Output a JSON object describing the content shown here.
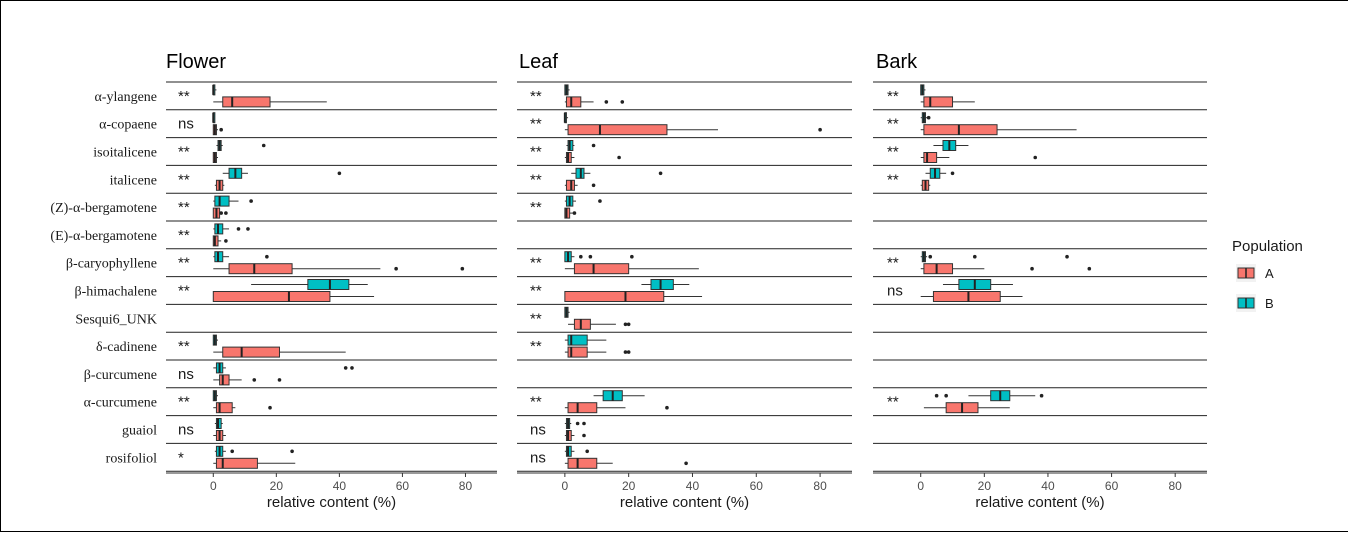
{
  "chart_data": {
    "type": "boxplot",
    "xlabel": "relative content (%)",
    "xlim": [
      -15,
      90
    ],
    "xticks": [
      0,
      20,
      40,
      60,
      80
    ],
    "colors": {
      "A": "#f8766d",
      "B": "#00bfc4"
    },
    "legend": {
      "title": "Population",
      "entries": [
        "A",
        "B"
      ],
      "placement": "right"
    },
    "categories": [
      "α-ylangene",
      "α-copaene",
      "isoitalicene",
      "italicene",
      "(Z)-α-bergamotene",
      "(E)-α-bergamotene",
      "β-caryophyllene",
      "β-himachalene",
      "Sesqui6_UNK",
      "δ-cadinene",
      "β-curcumene",
      "α-curcumene",
      "guaiol",
      "rosifoliol"
    ],
    "panels": [
      {
        "title": "Flower",
        "significance": [
          "**",
          "ns",
          "**",
          "**",
          "**",
          "**",
          "**",
          "**",
          "",
          "**",
          "ns",
          "**",
          "ns",
          "*"
        ],
        "rows": [
          {
            "A": {
              "q1": 3,
              "med": 6,
              "q3": 18,
              "lo": 0,
              "hi": 36,
              "out": []
            },
            "B": {
              "q1": 0,
              "med": 0,
              "q3": 0.5,
              "lo": 0,
              "hi": 1,
              "out": []
            }
          },
          {
            "A": {
              "q1": 0,
              "med": 0.5,
              "q3": 1,
              "lo": 0,
              "hi": 1.5,
              "out": [
                2.5
              ]
            },
            "B": {
              "q1": 0,
              "med": 0,
              "q3": 0.5,
              "lo": 0,
              "hi": 0.5,
              "out": []
            }
          },
          {
            "A": {
              "q1": 0,
              "med": 0.5,
              "q3": 1,
              "lo": 0,
              "hi": 1.5,
              "out": []
            },
            "B": {
              "q1": 1.5,
              "med": 2,
              "q3": 2.5,
              "lo": 1,
              "hi": 3,
              "out": [
                16
              ]
            }
          },
          {
            "A": {
              "q1": 1,
              "med": 2,
              "q3": 3,
              "lo": 0.5,
              "hi": 3.5,
              "out": []
            },
            "B": {
              "q1": 5,
              "med": 7,
              "q3": 9,
              "lo": 3,
              "hi": 11,
              "out": [
                40
              ]
            }
          },
          {
            "A": {
              "q1": 0,
              "med": 1,
              "q3": 2,
              "lo": 0,
              "hi": 3,
              "out": [
                2.5,
                4
              ]
            },
            "B": {
              "q1": 0.5,
              "med": 2,
              "q3": 5,
              "lo": 0,
              "hi": 8,
              "out": [
                12
              ]
            }
          },
          {
            "A": {
              "q1": 0,
              "med": 0.5,
              "q3": 1.5,
              "lo": 0,
              "hi": 2.5,
              "out": [
                4
              ]
            },
            "B": {
              "q1": 0.5,
              "med": 1.5,
              "q3": 3,
              "lo": 0,
              "hi": 5,
              "out": [
                8,
                11
              ]
            }
          },
          {
            "A": {
              "q1": 5,
              "med": 13,
              "q3": 25,
              "lo": 0,
              "hi": 53,
              "out": [
                58,
                79
              ]
            },
            "B": {
              "q1": 0.5,
              "med": 1.5,
              "q3": 3,
              "lo": 0,
              "hi": 5,
              "out": [
                17
              ]
            }
          },
          {
            "A": {
              "q1": 0,
              "med": 24,
              "q3": 37,
              "lo": 0,
              "hi": 51,
              "out": []
            },
            "B": {
              "q1": 30,
              "med": 37,
              "q3": 43,
              "lo": 12,
              "hi": 49,
              "out": []
            }
          },
          {
            "A": null,
            "B": null
          },
          {
            "A": {
              "q1": 3,
              "med": 9,
              "q3": 21,
              "lo": 0,
              "hi": 42,
              "out": []
            },
            "B": {
              "q1": 0,
              "med": 0.5,
              "q3": 1,
              "lo": 0,
              "hi": 1.5,
              "out": []
            }
          },
          {
            "A": {
              "q1": 2,
              "med": 3,
              "q3": 5,
              "lo": 0,
              "hi": 9,
              "out": [
                13,
                21
              ]
            },
            "B": {
              "q1": 1,
              "med": 2,
              "q3": 3,
              "lo": 0,
              "hi": 4,
              "out": [
                42,
                44
              ]
            }
          },
          {
            "A": {
              "q1": 1,
              "med": 2,
              "q3": 6,
              "lo": 0,
              "hi": 7,
              "out": [
                18
              ]
            },
            "B": {
              "q1": 0,
              "med": 0.5,
              "q3": 1,
              "lo": 0,
              "hi": 1.5,
              "out": []
            }
          },
          {
            "A": {
              "q1": 1,
              "med": 2,
              "q3": 3,
              "lo": 0,
              "hi": 4,
              "out": []
            },
            "B": {
              "q1": 1,
              "med": 1.5,
              "q3": 2.5,
              "lo": 0.5,
              "hi": 3,
              "out": []
            }
          },
          {
            "A": {
              "q1": 1,
              "med": 3,
              "q3": 14,
              "lo": 0,
              "hi": 26,
              "out": []
            },
            "B": {
              "q1": 1,
              "med": 2,
              "q3": 3,
              "lo": 0.5,
              "hi": 4,
              "out": [
                6,
                25
              ]
            }
          }
        ]
      },
      {
        "title": "Leaf",
        "significance": [
          "**",
          "**",
          "**",
          "**",
          "**",
          "",
          "**",
          "**",
          "**",
          "**",
          "",
          "**",
          "ns",
          "ns"
        ],
        "rows": [
          {
            "A": {
              "q1": 0.5,
              "med": 2,
              "q3": 5,
              "lo": 0,
              "hi": 9,
              "out": [
                13,
                18
              ]
            },
            "B": {
              "q1": 0,
              "med": 0.5,
              "q3": 1,
              "lo": 0,
              "hi": 1.5,
              "out": []
            }
          },
          {
            "A": {
              "q1": 1,
              "med": 11,
              "q3": 32,
              "lo": 0,
              "hi": 48,
              "out": [
                80
              ]
            },
            "B": {
              "q1": 0,
              "med": 0,
              "q3": 0.5,
              "lo": 0,
              "hi": 1,
              "out": []
            }
          },
          {
            "A": {
              "q1": 0.5,
              "med": 1,
              "q3": 2,
              "lo": 0,
              "hi": 3,
              "out": [
                17
              ]
            },
            "B": {
              "q1": 1,
              "med": 1.5,
              "q3": 2.5,
              "lo": 0.5,
              "hi": 3,
              "out": [
                9
              ]
            }
          },
          {
            "A": {
              "q1": 0.5,
              "med": 2,
              "q3": 3,
              "lo": 0,
              "hi": 4,
              "out": [
                9
              ]
            },
            "B": {
              "q1": 3.5,
              "med": 5,
              "q3": 6,
              "lo": 2,
              "hi": 8,
              "out": [
                30
              ]
            }
          },
          {
            "A": {
              "q1": 0,
              "med": 0.5,
              "q3": 1.5,
              "lo": 0,
              "hi": 2.5,
              "out": [
                3
              ]
            },
            "B": {
              "q1": 0.5,
              "med": 1.5,
              "q3": 2.5,
              "lo": 0,
              "hi": 3.5,
              "out": [
                11
              ]
            }
          },
          {
            "A": null,
            "B": null
          },
          {
            "A": {
              "q1": 3,
              "med": 9,
              "q3": 20,
              "lo": 0,
              "hi": 42,
              "out": []
            },
            "B": {
              "q1": 0,
              "med": 1,
              "q3": 2,
              "lo": 0,
              "hi": 3,
              "out": [
                5,
                8,
                21
              ]
            }
          },
          {
            "A": {
              "q1": 0,
              "med": 19,
              "q3": 31,
              "lo": 0,
              "hi": 43,
              "out": []
            },
            "B": {
              "q1": 27,
              "med": 30,
              "q3": 34,
              "lo": 24,
              "hi": 39,
              "out": []
            }
          },
          {
            "A": {
              "q1": 3,
              "med": 5,
              "q3": 8,
              "lo": 1,
              "hi": 16,
              "out": [
                19,
                20
              ]
            },
            "B": {
              "q1": 0,
              "med": 0.5,
              "q3": 1,
              "lo": 0,
              "hi": 1.5,
              "out": []
            }
          },
          {
            "A": {
              "q1": 1,
              "med": 2,
              "q3": 7,
              "lo": 0,
              "hi": 13,
              "out": [
                19,
                20
              ]
            },
            "B": {
              "q1": 1,
              "med": 2,
              "q3": 7,
              "lo": 0,
              "hi": 13,
              "out": []
            }
          },
          {
            "A": null,
            "B": null
          },
          {
            "A": {
              "q1": 1,
              "med": 4,
              "q3": 10,
              "lo": 0,
              "hi": 19,
              "out": [
                32
              ]
            },
            "B": {
              "q1": 12,
              "med": 15,
              "q3": 18,
              "lo": 9,
              "hi": 25,
              "out": []
            }
          },
          {
            "A": {
              "q1": 0.5,
              "med": 1,
              "q3": 2,
              "lo": 0,
              "hi": 3,
              "out": [
                6
              ]
            },
            "B": {
              "q1": 0.5,
              "med": 1,
              "q3": 1.5,
              "lo": 0,
              "hi": 2,
              "out": [
                4,
                6
              ]
            }
          },
          {
            "A": {
              "q1": 1,
              "med": 4,
              "q3": 10,
              "lo": 0,
              "hi": 15,
              "out": [
                38
              ]
            },
            "B": {
              "q1": 0.5,
              "med": 1,
              "q3": 2,
              "lo": 0,
              "hi": 3,
              "out": [
                7
              ]
            }
          }
        ]
      },
      {
        "title": "Bark",
        "significance": [
          "**",
          "**",
          "**",
          "**",
          "",
          "",
          "**",
          "ns",
          "",
          "",
          "",
          "**",
          "",
          ""
        ],
        "rows": [
          {
            "A": {
              "q1": 1,
              "med": 3,
              "q3": 10,
              "lo": 0,
              "hi": 17,
              "out": []
            },
            "B": {
              "q1": 0,
              "med": 0.5,
              "q3": 1,
              "lo": 0,
              "hi": 1.5,
              "out": []
            }
          },
          {
            "A": {
              "q1": 1,
              "med": 12,
              "q3": 24,
              "lo": 0,
              "hi": 49,
              "out": []
            },
            "B": {
              "q1": 0.5,
              "med": 1,
              "q3": 1.5,
              "lo": 0,
              "hi": 2,
              "out": [
                2.5
              ]
            }
          },
          {
            "A": {
              "q1": 1,
              "med": 2,
              "q3": 5,
              "lo": 0,
              "hi": 9,
              "out": [
                36
              ]
            },
            "B": {
              "q1": 7,
              "med": 9,
              "q3": 11,
              "lo": 4,
              "hi": 15,
              "out": []
            }
          },
          {
            "A": {
              "q1": 0.5,
              "med": 1.5,
              "q3": 2.5,
              "lo": 0,
              "hi": 3,
              "out": []
            },
            "B": {
              "q1": 3,
              "med": 4.5,
              "q3": 6,
              "lo": 1.5,
              "hi": 8,
              "out": [
                10
              ]
            }
          },
          {
            "A": null,
            "B": null
          },
          {
            "A": null,
            "B": null
          },
          {
            "A": {
              "q1": 1,
              "med": 5,
              "q3": 10,
              "lo": 0,
              "hi": 20,
              "out": [
                35,
                53
              ]
            },
            "B": {
              "q1": 0.5,
              "med": 1,
              "q3": 1.5,
              "lo": 0,
              "hi": 2,
              "out": [
                3,
                17,
                46
              ]
            }
          },
          {
            "A": {
              "q1": 4,
              "med": 15,
              "q3": 25,
              "lo": 0,
              "hi": 32,
              "out": []
            },
            "B": {
              "q1": 12,
              "med": 17,
              "q3": 22,
              "lo": 7,
              "hi": 29,
              "out": []
            }
          },
          {
            "A": null,
            "B": null
          },
          {
            "A": null,
            "B": null
          },
          {
            "A": null,
            "B": null
          },
          {
            "A": {
              "q1": 8,
              "med": 13,
              "q3": 18,
              "lo": 1,
              "hi": 28,
              "out": []
            },
            "B": {
              "q1": 22,
              "med": 25,
              "q3": 28,
              "lo": 15,
              "hi": 36,
              "out": [
                5,
                8,
                38
              ]
            }
          },
          {
            "A": null,
            "B": null
          },
          {
            "A": null,
            "B": null
          }
        ]
      }
    ]
  }
}
